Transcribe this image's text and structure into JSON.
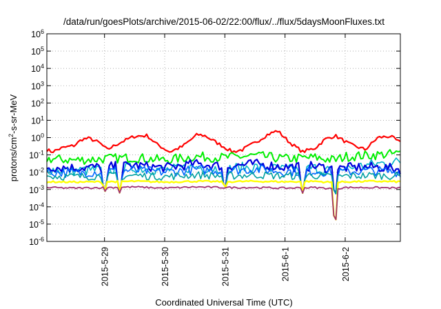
{
  "chart_data": {
    "type": "line",
    "title": "/data/run/goesPlots/archive/2015-06-02/22:00/flux/../flux/5daysMoonFluxes.txt",
    "xlabel": "Coordinated Universal Time (UTC)",
    "ylabel": {
      "base": "protons/cm",
      "exp": "2",
      "rest": "-s-sr-MeV"
    },
    "yscale": "log",
    "ylim": [
      1e-06,
      1000000.0
    ],
    "xlim": [
      "2015-05-28 01:00",
      "2015-06-02 22:00"
    ],
    "grid": true,
    "legend": "none",
    "x_ticks": [
      {
        "date": "2015-05-29 00:00",
        "label": "2015-5-29"
      },
      {
        "date": "2015-05-30 00:00",
        "label": "2015-5-30"
      },
      {
        "date": "2015-05-31 00:00",
        "label": "2015-5-31"
      },
      {
        "date": "2015-06-01 00:00",
        "label": "2015-6-1"
      },
      {
        "date": "2015-06-02 00:00",
        "label": "2015-6-2"
      }
    ],
    "y_ticks": [
      {
        "value": 1e-06,
        "exp": "-6"
      },
      {
        "value": 1e-05,
        "exp": "-5"
      },
      {
        "value": 0.0001,
        "exp": "-4"
      },
      {
        "value": 0.001,
        "exp": "-3"
      },
      {
        "value": 0.01,
        "exp": "-2"
      },
      {
        "value": 0.1,
        "exp": "-1"
      },
      {
        "value": 1,
        "exp": "0"
      },
      {
        "value": 10,
        "exp": "1"
      },
      {
        "value": 100,
        "exp": "2"
      },
      {
        "value": 1000,
        "exp": "3"
      },
      {
        "value": 10000,
        "exp": "4"
      },
      {
        "value": 100000,
        "exp": "5"
      },
      {
        "value": 1000000,
        "exp": "6"
      }
    ],
    "series": [
      {
        "color": "#ff0000",
        "width": 2.2,
        "x": [
          "2015-05-28 01:00",
          "2015-05-28 03:00",
          "2015-05-28 07:00",
          "2015-05-28 12:00",
          "2015-05-28 15:00",
          "2015-05-28 18:00",
          "2015-05-28 22:00",
          "2015-05-29 01:00",
          "2015-05-29 06:00",
          "2015-05-29 12:00",
          "2015-05-29 17:00",
          "2015-05-29 21:00",
          "2015-05-30 02:00",
          "2015-05-30 07:00",
          "2015-05-30 13:00",
          "2015-05-30 16:00",
          "2015-05-30 22:00",
          "2015-05-31 03:00",
          "2015-05-31 07:00",
          "2015-05-31 12:00",
          "2015-05-31 17:00",
          "2015-05-31 21:00",
          "2015-06-01 02:00",
          "2015-06-01 07:00",
          "2015-06-01 12:00",
          "2015-06-01 16:00",
          "2015-06-01 20:00",
          "2015-06-02 02:00",
          "2015-06-02 08:00",
          "2015-06-02 13:00",
          "2015-06-02 18:00",
          "2015-06-02 22:00"
        ],
        "y": [
          0.2,
          0.15,
          0.25,
          0.35,
          0.8,
          0.9,
          0.5,
          0.2,
          0.5,
          1.2,
          1.3,
          0.4,
          0.15,
          0.3,
          1.5,
          1.3,
          0.4,
          0.15,
          0.2,
          0.5,
          1.5,
          2.5,
          0.5,
          0.15,
          0.25,
          0.8,
          1.3,
          0.4,
          0.2,
          1.0,
          1.2,
          0.5
        ]
      },
      {
        "color": "#00ee00",
        "width": 2,
        "x": [
          "2015-05-28 01:00",
          "2015-05-28 12:00",
          "2015-05-29 00:00",
          "2015-05-29 12:00",
          "2015-05-30 00:00",
          "2015-05-30 12:00",
          "2015-05-31 00:00",
          "2015-05-31 12:00",
          "2015-06-01 00:00",
          "2015-06-01 12:00",
          "2015-06-01 20:00",
          "2015-06-02 00:00",
          "2015-06-02 12:00",
          "2015-06-02 22:00"
        ],
        "y": [
          0.06,
          0.05,
          0.06,
          0.07,
          0.05,
          0.08,
          0.07,
          0.09,
          0.06,
          0.07,
          0.05,
          0.08,
          0.1,
          0.12
        ]
      },
      {
        "color": "#00b4c8",
        "width": 1.6,
        "x": [
          "2015-05-28 01:00",
          "2015-05-28 12:00",
          "2015-05-29 00:00",
          "2015-05-29 12:00",
          "2015-05-30 00:00",
          "2015-05-30 12:00",
          "2015-05-31 00:00",
          "2015-05-31 12:00",
          "2015-06-01 00:00",
          "2015-06-01 12:00",
          "2015-06-01 20:00",
          "2015-06-02 00:00",
          "2015-06-02 12:00",
          "2015-06-02 22:00"
        ],
        "y": [
          0.015,
          0.012,
          0.014,
          0.018,
          0.013,
          0.02,
          0.016,
          0.02,
          0.014,
          0.017,
          0.012,
          0.016,
          0.03,
          0.04
        ]
      },
      {
        "color": "#0000dd",
        "width": 2.2,
        "x": [
          "2015-05-28 01:00",
          "2015-05-28 12:00",
          "2015-05-29 00:00",
          "2015-05-29 12:00",
          "2015-05-30 00:00",
          "2015-05-30 12:00",
          "2015-05-31 00:00",
          "2015-05-31 12:00",
          "2015-06-01 00:00",
          "2015-06-01 12:00",
          "2015-06-01 20:00",
          "2015-06-02 00:00",
          "2015-06-02 12:00",
          "2015-06-02 22:00"
        ],
        "y": [
          0.02,
          0.018,
          0.02,
          0.025,
          0.018,
          0.03,
          0.022,
          0.03,
          0.02,
          0.022,
          0.015,
          0.018,
          0.02,
          0.015
        ]
      },
      {
        "color": "#0066ff",
        "width": 1.6,
        "x": [
          "2015-05-28 01:00",
          "2015-05-28 12:00",
          "2015-05-29 00:00",
          "2015-05-29 12:00",
          "2015-05-30 00:00",
          "2015-05-30 12:00",
          "2015-05-31 00:00",
          "2015-05-31 12:00",
          "2015-06-01 00:00",
          "2015-06-01 12:00",
          "2015-06-01 20:00",
          "2015-06-02 00:00",
          "2015-06-02 12:00",
          "2015-06-02 22:00"
        ],
        "y": [
          0.01,
          0.009,
          0.011,
          0.013,
          0.01,
          0.014,
          0.012,
          0.015,
          0.011,
          0.012,
          0.009,
          0.011,
          0.012,
          0.01
        ]
      },
      {
        "color": "#00a0a0",
        "width": 1.6,
        "x": [
          "2015-05-28 01:00",
          "2015-05-28 12:00",
          "2015-05-29 00:00",
          "2015-05-29 12:00",
          "2015-05-30 00:00",
          "2015-05-30 12:00",
          "2015-05-31 00:00",
          "2015-05-31 12:00",
          "2015-06-01 00:00",
          "2015-06-01 12:00",
          "2015-06-01 20:00",
          "2015-06-02 00:00",
          "2015-06-02 12:00",
          "2015-06-02 22:00"
        ],
        "y": [
          0.006,
          0.0055,
          0.006,
          0.0065,
          0.0055,
          0.007,
          0.006,
          0.007,
          0.006,
          0.0065,
          0.005,
          0.006,
          0.0065,
          0.006
        ]
      },
      {
        "color": "#ffff00",
        "width": 2.4,
        "x": [
          "2015-05-28 01:00",
          "2015-05-28 12:00",
          "2015-05-29 00:00",
          "2015-05-29 12:00",
          "2015-05-30 00:00",
          "2015-05-30 12:00",
          "2015-05-31 00:00",
          "2015-05-31 12:00",
          "2015-06-01 00:00",
          "2015-06-01 12:00",
          "2015-06-01 20:00",
          "2015-06-02 00:00",
          "2015-06-02 12:00",
          "2015-06-02 22:00"
        ],
        "y": [
          0.0028,
          0.0027,
          0.0028,
          0.003,
          0.0027,
          0.003,
          0.0028,
          0.003,
          0.0028,
          0.003,
          0.0025,
          0.0028,
          0.003,
          0.0028
        ]
      },
      {
        "color": "#a03070",
        "width": 1.8,
        "x": [
          "2015-05-28 01:00",
          "2015-05-28 12:00",
          "2015-05-29 00:00",
          "2015-05-29 12:00",
          "2015-05-30 00:00",
          "2015-05-30 12:00",
          "2015-05-31 00:00",
          "2015-05-31 12:00",
          "2015-06-01 00:00",
          "2015-06-01 12:00",
          "2015-06-01 20:00",
          "2015-06-02 00:00",
          "2015-06-02 12:00",
          "2015-06-02 22:00"
        ],
        "y": [
          0.0013,
          0.0012,
          0.0013,
          0.0014,
          0.0012,
          0.0014,
          0.0013,
          0.0013,
          0.0012,
          0.0013,
          0.0011,
          0.0013,
          0.0013,
          0.0012
        ]
      }
    ],
    "events": [
      {
        "date": "2015-05-29 00:00",
        "min": 0.0005
      },
      {
        "date": "2015-05-29 06:00",
        "min": 0.0006
      },
      {
        "date": "2015-05-31 00:00",
        "min": 0.0007
      },
      {
        "date": "2015-06-01 07:00",
        "min": 0.0006
      },
      {
        "date": "2015-06-01 20:00",
        "min": 1e-05
      }
    ]
  }
}
